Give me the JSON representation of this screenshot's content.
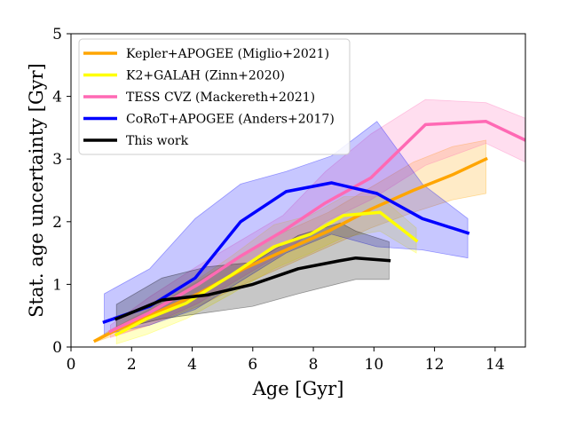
{
  "chart_data": {
    "type": "line",
    "xlabel": "Age [Gyr]",
    "ylabel": "Stat. age uncertainty [Gyr]",
    "xlim": [
      0,
      15
    ],
    "ylim": [
      0,
      5
    ],
    "xticks": [
      0,
      2,
      4,
      6,
      8,
      10,
      12,
      14
    ],
    "yticks": [
      0,
      1,
      2,
      3,
      4,
      5
    ],
    "grid": false,
    "legend_position": "top-left",
    "series": [
      {
        "name": "Kepler+APOGEE (Miglio+2021)",
        "color": "#FFA500",
        "x": [
          0.8,
          1.4,
          2.6,
          4.2,
          5.7,
          7.1,
          8.5,
          9.9,
          11.3,
          12.6,
          13.7
        ],
        "y": [
          0.1,
          0.25,
          0.5,
          0.85,
          1.25,
          1.55,
          1.85,
          2.2,
          2.5,
          2.75,
          3.0
        ],
        "band_upper": [
          0.12,
          0.3,
          0.6,
          1.05,
          1.5,
          1.85,
          2.15,
          2.55,
          2.95,
          3.2,
          3.3
        ],
        "band_lower": [
          0.08,
          0.18,
          0.35,
          0.65,
          1.0,
          1.3,
          1.6,
          1.9,
          2.15,
          2.35,
          2.45
        ]
      },
      {
        "name": "K2+GALAH (Zinn+2020)",
        "color": "#FFFF00",
        "x": [
          1.5,
          2.5,
          3.8,
          5.3,
          6.7,
          7.9,
          9.0,
          10.2,
          11.4
        ],
        "y": [
          0.2,
          0.45,
          0.7,
          1.15,
          1.6,
          1.8,
          2.1,
          2.15,
          1.7
        ],
        "band_upper": [
          0.4,
          0.65,
          0.95,
          1.45,
          1.95,
          2.1,
          2.4,
          2.4,
          1.9
        ],
        "band_lower": [
          0.05,
          0.2,
          0.45,
          0.85,
          1.25,
          1.5,
          1.75,
          1.85,
          1.5
        ]
      },
      {
        "name": "TESS CVZ (Mackereth+2021)",
        "color": "#FF69B4",
        "x": [
          1.3,
          2.6,
          4.2,
          5.6,
          7.0,
          8.4,
          9.9,
          11.7,
          13.7,
          15.0
        ],
        "y": [
          0.25,
          0.55,
          1.0,
          1.45,
          1.85,
          2.3,
          2.7,
          3.55,
          3.6,
          3.3
        ],
        "band_upper": [
          0.35,
          0.8,
          1.3,
          1.7,
          2.1,
          2.8,
          3.4,
          3.95,
          3.9,
          3.65
        ],
        "band_lower": [
          0.15,
          0.35,
          0.7,
          1.1,
          1.5,
          2.0,
          2.35,
          2.9,
          3.25,
          2.95
        ]
      },
      {
        "name": "CoRoT+APOGEE (Anders+2017)",
        "color": "#0000FF",
        "x": [
          1.1,
          2.6,
          4.1,
          5.6,
          7.1,
          8.6,
          10.1,
          11.6,
          13.1
        ],
        "y": [
          0.4,
          0.65,
          1.1,
          2.0,
          2.48,
          2.62,
          2.45,
          2.05,
          1.82
        ],
        "band_upper": [
          0.85,
          1.25,
          2.05,
          2.6,
          2.8,
          3.05,
          3.6,
          2.6,
          2.05
        ],
        "band_lower": [
          0.2,
          0.35,
          0.6,
          1.05,
          1.5,
          1.8,
          1.6,
          1.55,
          1.42
        ]
      },
      {
        "name": "This work",
        "color": "#000000",
        "x": [
          1.5,
          3.0,
          4.5,
          6.0,
          7.5,
          8.9,
          9.4,
          10.5
        ],
        "y": [
          0.45,
          0.75,
          0.83,
          1.0,
          1.25,
          1.38,
          1.42,
          1.38
        ],
        "band_upper": [
          0.68,
          1.1,
          1.28,
          1.35,
          1.78,
          1.98,
          1.85,
          1.68
        ],
        "band_lower": [
          0.28,
          0.45,
          0.55,
          0.65,
          0.85,
          1.02,
          1.08,
          1.08
        ]
      }
    ]
  }
}
